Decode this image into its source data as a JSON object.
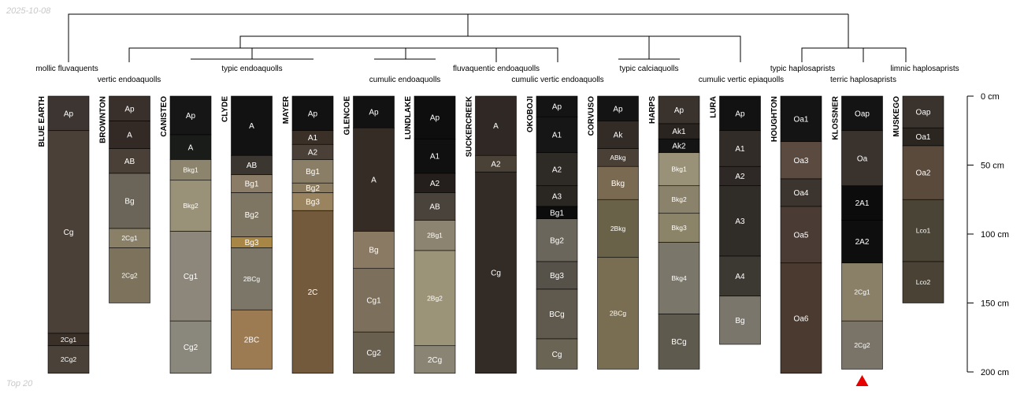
{
  "header": {
    "date": "2025-10-08"
  },
  "footer": {
    "note": "Top 20"
  },
  "depth_axis": {
    "unit": "cm",
    "max": 200,
    "ticks": [
      {
        "value": 0,
        "label": "0 cm"
      },
      {
        "value": 50,
        "label": "50 cm"
      },
      {
        "value": 100,
        "label": "100 cm"
      },
      {
        "value": 150,
        "label": "150 cm"
      },
      {
        "value": 200,
        "label": "200 cm"
      }
    ]
  },
  "marker": {
    "profile": "KLOSSNER",
    "shape": "triangle",
    "color": "#e60000"
  },
  "classes": [
    {
      "id": "mollic",
      "label": "mollic fluvaquents"
    },
    {
      "id": "verticendo",
      "label": "vertic endoaquolls"
    },
    {
      "id": "typicendo",
      "label": "typic endoaquolls"
    },
    {
      "id": "cumulicendo",
      "label": "cumulic endoaquolls"
    },
    {
      "id": "fluvaquentic",
      "label": "fluvaquentic endoaquolls"
    },
    {
      "id": "cumvertendo",
      "label": "cumulic vertic endoaquolls"
    },
    {
      "id": "typiccalci",
      "label": "typic calciaquolls"
    },
    {
      "id": "cumvertepi",
      "label": "cumulic vertic epiaquolls"
    },
    {
      "id": "typichaplo",
      "label": "typic haplosaprists"
    },
    {
      "id": "terric",
      "label": "terric haplosaprists"
    },
    {
      "id": "limnic",
      "label": "limnic haplosaprists"
    }
  ],
  "profiles": [
    {
      "name": "BLUE EARTH",
      "horizons": [
        {
          "label": "Ap",
          "top": 0,
          "bottom": 25,
          "color": "#3d3531"
        },
        {
          "label": "Cg",
          "top": 25,
          "bottom": 172,
          "color": "#4a4038"
        },
        {
          "label": "2Cg1",
          "top": 172,
          "bottom": 181,
          "color": "#3a3028"
        },
        {
          "label": "2Cg2",
          "top": 181,
          "bottom": 201,
          "color": "#4a4238"
        }
      ]
    },
    {
      "name": "BROWNTON",
      "horizons": [
        {
          "label": "Ap",
          "top": 0,
          "bottom": 18,
          "color": "#3a302b"
        },
        {
          "label": "A",
          "top": 18,
          "bottom": 38,
          "color": "#332a25"
        },
        {
          "label": "AB",
          "top": 38,
          "bottom": 56,
          "color": "#4a4038"
        },
        {
          "label": "Bg",
          "top": 56,
          "bottom": 96,
          "color": "#6a6558"
        },
        {
          "label": "2Cg1",
          "top": 96,
          "bottom": 110,
          "color": "#8a8068"
        },
        {
          "label": "2Cg2",
          "top": 110,
          "bottom": 150,
          "color": "#7d735c"
        }
      ]
    },
    {
      "name": "CANISTEO",
      "horizons": [
        {
          "label": "Ap",
          "top": 0,
          "bottom": 28,
          "color": "#161616"
        },
        {
          "label": "A",
          "top": 28,
          "bottom": 46,
          "color": "#1a1c1a"
        },
        {
          "label": "Bkg1",
          "top": 46,
          "bottom": 61,
          "color": "#8c846c"
        },
        {
          "label": "Bkg2",
          "top": 61,
          "bottom": 98,
          "color": "#9a9278"
        },
        {
          "label": "Cg1",
          "top": 98,
          "bottom": 163,
          "color": "#8c877a"
        },
        {
          "label": "Cg2",
          "top": 163,
          "bottom": 201,
          "color": "#8a877c"
        }
      ]
    },
    {
      "name": "CLYDE",
      "horizons": [
        {
          "label": "A",
          "top": 0,
          "bottom": 43,
          "color": "#121212"
        },
        {
          "label": "AB",
          "top": 43,
          "bottom": 57,
          "color": "#3b3630"
        },
        {
          "label": "Bg1",
          "top": 57,
          "bottom": 70,
          "color": "#8a7c66"
        },
        {
          "label": "Bg2",
          "top": 70,
          "bottom": 102,
          "color": "#7e7663"
        },
        {
          "label": "Bg3",
          "top": 102,
          "bottom": 110,
          "color": "#a88646"
        },
        {
          "label": "2BCg",
          "top": 110,
          "bottom": 155,
          "color": "#7c7668"
        },
        {
          "label": "2BC",
          "top": 155,
          "bottom": 198,
          "color": "#9c7a52"
        }
      ]
    },
    {
      "name": "MAYER",
      "horizons": [
        {
          "label": "Ap",
          "top": 0,
          "bottom": 25,
          "color": "#121212"
        },
        {
          "label": "A1",
          "top": 25,
          "bottom": 35,
          "color": "#3a3028"
        },
        {
          "label": "A2",
          "top": 35,
          "bottom": 46,
          "color": "#4a4038"
        },
        {
          "label": "Bg1",
          "top": 46,
          "bottom": 63,
          "color": "#8a7e66"
        },
        {
          "label": "Bg2",
          "top": 63,
          "bottom": 70,
          "color": "#8c7c60"
        },
        {
          "label": "Bg3",
          "top": 70,
          "bottom": 83,
          "color": "#9a8460"
        },
        {
          "label": "2C",
          "top": 83,
          "bottom": 201,
          "color": "#745a3c"
        }
      ]
    },
    {
      "name": "GLENCOE",
      "horizons": [
        {
          "label": "Ap",
          "top": 0,
          "bottom": 23,
          "color": "#121212"
        },
        {
          "label": "A",
          "top": 23,
          "bottom": 98,
          "color": "#352c26"
        },
        {
          "label": "Bg",
          "top": 98,
          "bottom": 125,
          "color": "#8a7a64"
        },
        {
          "label": "Cg1",
          "top": 125,
          "bottom": 171,
          "color": "#7c6f5c"
        },
        {
          "label": "Cg2",
          "top": 171,
          "bottom": 201,
          "color": "#6a6050"
        }
      ]
    },
    {
      "name": "LUNDLAKE",
      "horizons": [
        {
          "label": "Ap",
          "top": 0,
          "bottom": 31,
          "color": "#0e0e0e"
        },
        {
          "label": "A1",
          "top": 31,
          "bottom": 56,
          "color": "#101010"
        },
        {
          "label": "A2",
          "top": 56,
          "bottom": 70,
          "color": "#241f1c"
        },
        {
          "label": "AB",
          "top": 70,
          "bottom": 90,
          "color": "#4a433c"
        },
        {
          "label": "2Bg1",
          "top": 90,
          "bottom": 112,
          "color": "#8c8470"
        },
        {
          "label": "2Bg2",
          "top": 112,
          "bottom": 181,
          "color": "#9c9478"
        },
        {
          "label": "2Cg",
          "top": 181,
          "bottom": 201,
          "color": "#8a8474"
        }
      ]
    },
    {
      "name": "SUCKERCREEK",
      "horizons": [
        {
          "label": "A",
          "top": 0,
          "bottom": 43,
          "color": "#302824"
        },
        {
          "label": "A2",
          "top": 43,
          "bottom": 55,
          "color": "#4a4236"
        },
        {
          "label": "Cg",
          "top": 55,
          "bottom": 201,
          "color": "#332b26"
        }
      ]
    },
    {
      "name": "OKOBOJI",
      "horizons": [
        {
          "label": "Ap",
          "top": 0,
          "bottom": 15,
          "color": "#141414"
        },
        {
          "label": "A1",
          "top": 15,
          "bottom": 41,
          "color": "#161616"
        },
        {
          "label": "A2",
          "top": 41,
          "bottom": 65,
          "color": "#2e2a26"
        },
        {
          "label": "A3",
          "top": 65,
          "bottom": 80,
          "color": "#2a2622"
        },
        {
          "label": "Bg1",
          "top": 80,
          "bottom": 89,
          "color": "#0c0c0c"
        },
        {
          "label": "Bg2",
          "top": 89,
          "bottom": 120,
          "color": "#6a665c"
        },
        {
          "label": "Bg3",
          "top": 120,
          "bottom": 140,
          "color": "#56524a"
        },
        {
          "label": "BCg",
          "top": 140,
          "bottom": 176,
          "color": "#605a4e"
        },
        {
          "label": "Cg",
          "top": 176,
          "bottom": 198,
          "color": "#6a6454"
        }
      ]
    },
    {
      "name": "CORVUSO",
      "horizons": [
        {
          "label": "Ap",
          "top": 0,
          "bottom": 18,
          "color": "#141414"
        },
        {
          "label": "Ak",
          "top": 18,
          "bottom": 38,
          "color": "#332b26"
        },
        {
          "label": "ABkg",
          "top": 38,
          "bottom": 51,
          "color": "#4a4036"
        },
        {
          "label": "Bkg",
          "top": 51,
          "bottom": 75,
          "color": "#7a6a52"
        },
        {
          "label": "2Bkg",
          "top": 75,
          "bottom": 117,
          "color": "#6a6248"
        },
        {
          "label": "2BCg",
          "top": 117,
          "bottom": 198,
          "color": "#7a6e52"
        }
      ]
    },
    {
      "name": "HARPS",
      "horizons": [
        {
          "label": "Ap",
          "top": 0,
          "bottom": 20,
          "color": "#3a322c"
        },
        {
          "label": "Ak1",
          "top": 20,
          "bottom": 31,
          "color": "#2a2420"
        },
        {
          "label": "Ak2",
          "top": 31,
          "bottom": 41,
          "color": "#141414"
        },
        {
          "label": "Bkg1",
          "top": 41,
          "bottom": 65,
          "color": "#9a9278"
        },
        {
          "label": "Bkg2",
          "top": 65,
          "bottom": 85,
          "color": "#8a826a"
        },
        {
          "label": "Bkg3",
          "top": 85,
          "bottom": 106,
          "color": "#8c8468"
        },
        {
          "label": "Bkg4",
          "top": 106,
          "bottom": 158,
          "color": "#7a766a"
        },
        {
          "label": "BCg",
          "top": 158,
          "bottom": 198,
          "color": "#5e5a4e"
        }
      ]
    },
    {
      "name": "LURA",
      "horizons": [
        {
          "label": "Ap",
          "top": 0,
          "bottom": 25,
          "color": "#121212"
        },
        {
          "label": "A1",
          "top": 25,
          "bottom": 51,
          "color": "#322c28"
        },
        {
          "label": "A2",
          "top": 51,
          "bottom": 65,
          "color": "#2e2926"
        },
        {
          "label": "A3",
          "top": 65,
          "bottom": 116,
          "color": "#302c28"
        },
        {
          "label": "A4",
          "top": 116,
          "bottom": 145,
          "color": "#3c3832"
        },
        {
          "label": "Bg",
          "top": 145,
          "bottom": 180,
          "color": "#7a766c"
        }
      ]
    },
    {
      "name": "HOUGHTON",
      "horizons": [
        {
          "label": "Oa1",
          "top": 0,
          "bottom": 33,
          "color": "#141414"
        },
        {
          "label": "Oa3",
          "top": 33,
          "bottom": 60,
          "color": "#5a4a40"
        },
        {
          "label": "Oa4",
          "top": 60,
          "bottom": 80,
          "color": "#3c342e"
        },
        {
          "label": "Oa5",
          "top": 80,
          "bottom": 121,
          "color": "#4a3c34"
        },
        {
          "label": "Oa6",
          "top": 121,
          "bottom": 201,
          "color": "#4a3a30"
        }
      ]
    },
    {
      "name": "KLOSSNER",
      "horizons": [
        {
          "label": "Oap",
          "top": 0,
          "bottom": 25,
          "color": "#141414"
        },
        {
          "label": "Oa",
          "top": 25,
          "bottom": 65,
          "color": "#3a322c"
        },
        {
          "label": "2A1",
          "top": 65,
          "bottom": 90,
          "color": "#0c0c0c"
        },
        {
          "label": "2A2",
          "top": 90,
          "bottom": 121,
          "color": "#0e0e0e"
        },
        {
          "label": "2Cg1",
          "top": 121,
          "bottom": 163,
          "color": "#8a8068"
        },
        {
          "label": "2Cg2",
          "top": 163,
          "bottom": 198,
          "color": "#7a7468"
        }
      ]
    },
    {
      "name": "MUSKEGO",
      "horizons": [
        {
          "label": "Oap",
          "top": 0,
          "bottom": 23,
          "color": "#3a322c"
        },
        {
          "label": "Oa1",
          "top": 23,
          "bottom": 36,
          "color": "#2c2620"
        },
        {
          "label": "Oa2",
          "top": 36,
          "bottom": 75,
          "color": "#5a4a3c"
        },
        {
          "label": "Lco1",
          "top": 75,
          "bottom": 120,
          "color": "#4a4436"
        },
        {
          "label": "Lco2",
          "top": 120,
          "bottom": 150,
          "color": "#4a4234"
        }
      ]
    }
  ]
}
